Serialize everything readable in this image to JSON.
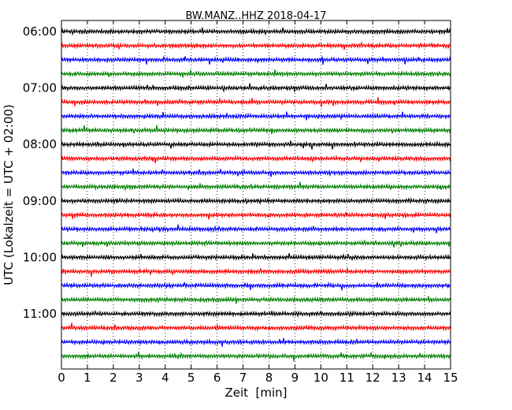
{
  "chart_data": {
    "type": "line",
    "title": "BW.MANZ..HHZ 2018-04-17",
    "xlabel": "Zeit  [min]",
    "ylabel": "UTC (Lokalzeit = UTC + 02:00)",
    "xlim": [
      0,
      15
    ],
    "x_ticks": [
      "0",
      "1",
      "2",
      "3",
      "4",
      "5",
      "6",
      "7",
      "8",
      "9",
      "10",
      "11",
      "12",
      "13",
      "14",
      "15"
    ],
    "y_ticks": [
      "06:00",
      "07:00",
      "08:00",
      "09:00",
      "10:00",
      "11:00"
    ],
    "trace_start_minutes": [
      0,
      15,
      30,
      45,
      60,
      75,
      90,
      105,
      120,
      135,
      150,
      165,
      180,
      195,
      210,
      225,
      240,
      255,
      270,
      285,
      300,
      315,
      330,
      345
    ],
    "trace_colors": [
      "#000000",
      "#ff0000",
      "#0000ff",
      "#008000"
    ],
    "grid": "vertical dotted lines at each minute"
  }
}
